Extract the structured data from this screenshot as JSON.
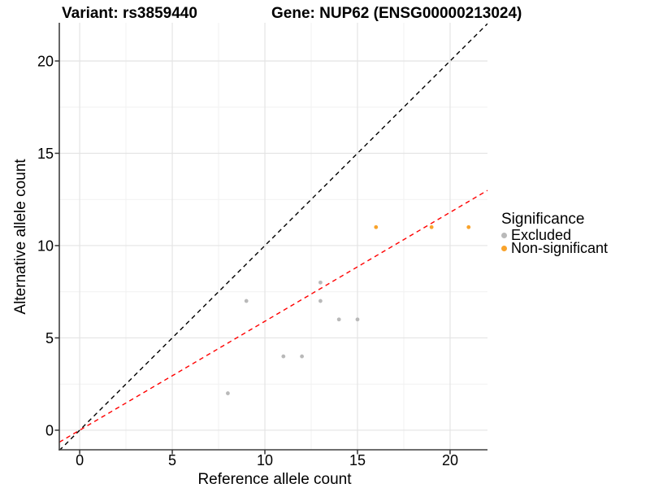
{
  "chart_data": {
    "type": "scatter",
    "title_left": "Variant: rs3859440",
    "title_right": "Gene: NUP62 (ENSG00000213024)",
    "xlabel": "Reference allele count",
    "ylabel": "Alternative allele count",
    "xlim": [
      -1.1,
      22.02
    ],
    "ylim": [
      -1.06,
      22.07
    ],
    "xticks": [
      0,
      5,
      10,
      15,
      20
    ],
    "yticks": [
      0,
      5,
      10,
      15,
      20
    ],
    "minor_ticks": [
      2.5,
      7.5,
      12.5,
      17.5
    ],
    "grid": "major+minor",
    "legend": {
      "title": "Significance",
      "position": "right-center",
      "entries": [
        {
          "label": "Excluded",
          "color": "#b9b9b9"
        },
        {
          "label": "Non-significant",
          "color": "#f9a32b"
        }
      ]
    },
    "series": [
      {
        "name": "Excluded",
        "color": "#b9b9b9",
        "points": [
          [
            8,
            2
          ],
          [
            9,
            7
          ],
          [
            11,
            4
          ],
          [
            12,
            4
          ],
          [
            13,
            7
          ],
          [
            13,
            8
          ],
          [
            14,
            6
          ],
          [
            15,
            6
          ]
        ]
      },
      {
        "name": "Non-significant",
        "color": "#f9a32b",
        "points": [
          [
            16,
            11
          ],
          [
            19,
            11
          ],
          [
            21,
            11
          ]
        ]
      }
    ],
    "ref_lines": [
      {
        "name": "identity-line",
        "slope": 1,
        "intercept": 0,
        "color": "#000000",
        "style": "dashed"
      },
      {
        "name": "fit-line",
        "slope": 0.59,
        "intercept": 0,
        "color": "#ff0000",
        "style": "dashed"
      }
    ],
    "style": {
      "axis_color": "#3f3f3f",
      "grid_major": "#e4e4e4",
      "grid_minor": "#f1f1f1",
      "tick_color": "#333333",
      "point_radius": 2.4,
      "tick_font_size": 18
    }
  }
}
